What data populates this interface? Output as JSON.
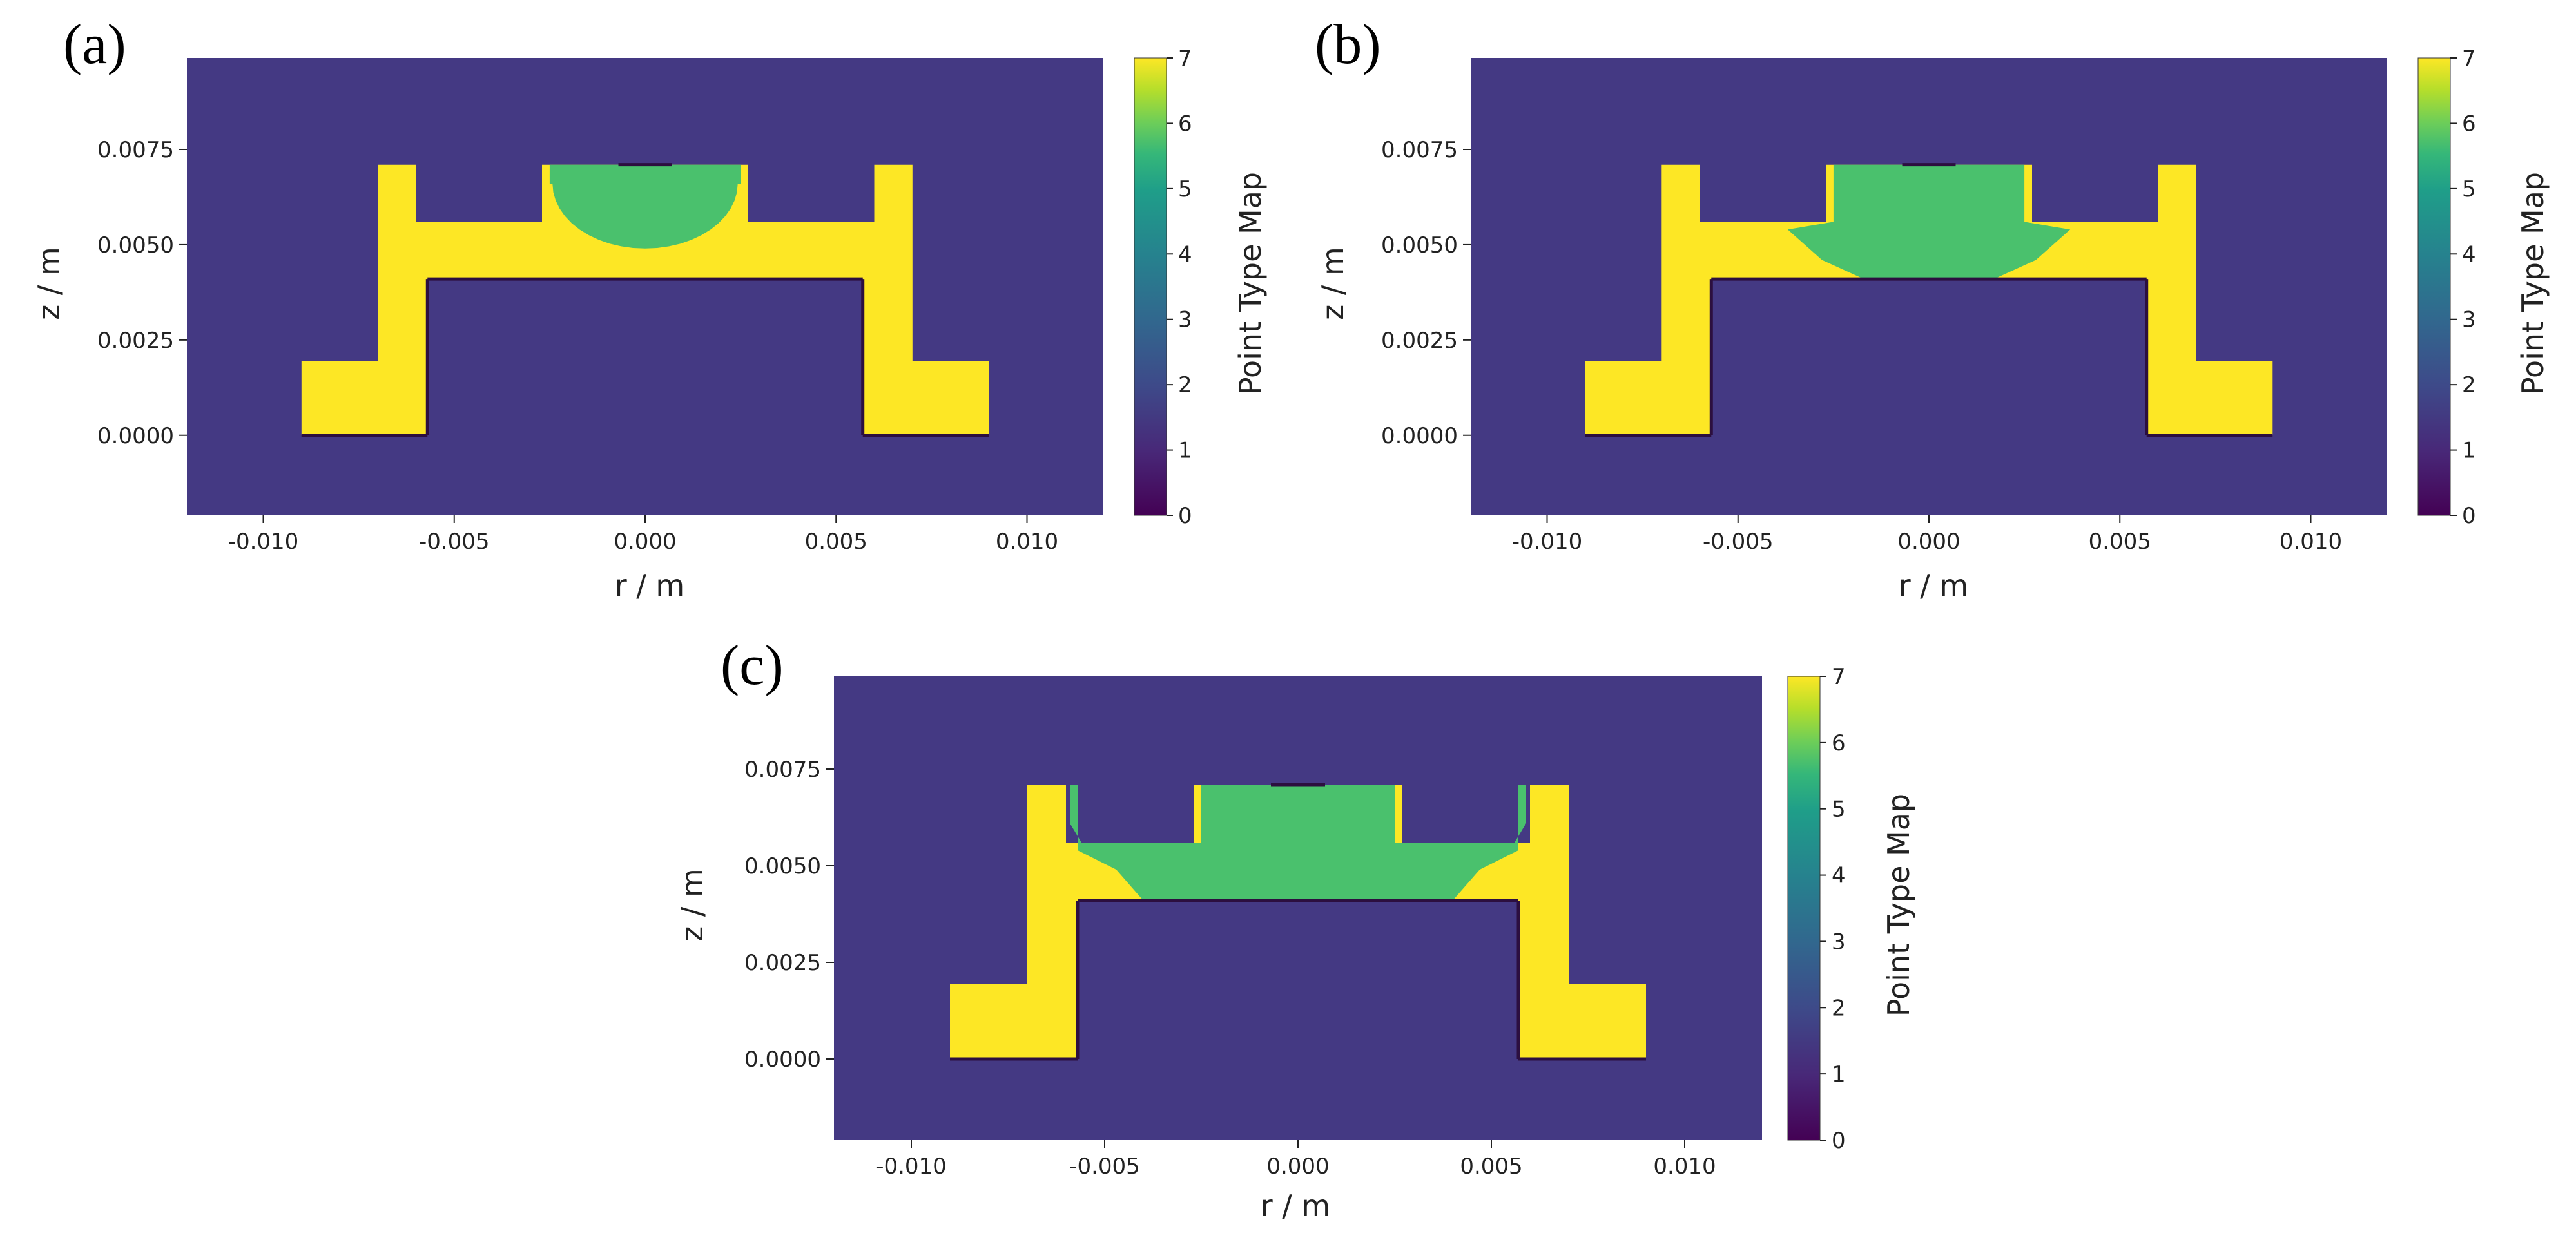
{
  "chart_data": [
    {
      "type": "heatmap",
      "panel_label": "(a)",
      "xlabel": "r / m",
      "ylabel": "z / m",
      "xlim": [
        -0.012,
        0.012
      ],
      "ylim": [
        -0.0021,
        0.0099
      ],
      "xticks": [
        "-0.010",
        "-0.005",
        "0.000",
        "0.005",
        "0.010"
      ],
      "xtick_values": [
        -0.01,
        -0.005,
        0.0,
        0.005,
        0.01
      ],
      "yticks": [
        "0.0000",
        "0.0025",
        "0.0050",
        "0.0075"
      ],
      "ytick_values": [
        0.0,
        0.0025,
        0.005,
        0.0075
      ],
      "colorbar": {
        "label": "Point Type Map",
        "range": [
          0,
          7
        ],
        "ticks": [
          "0",
          "1",
          "2",
          "3",
          "4",
          "5",
          "6",
          "7"
        ]
      },
      "regions": {
        "background_value": 1,
        "electrode_value": 7,
        "melt_value": 5,
        "boundary_value": 0
      },
      "melt_pool_shape": "bowl",
      "melt_half_width": 0.0025,
      "melt_depth_bottom": 0.0049
    },
    {
      "type": "heatmap",
      "panel_label": "(b)",
      "xlabel": "r / m",
      "ylabel": "z / m",
      "xlim": [
        -0.012,
        0.012
      ],
      "ylim": [
        -0.0021,
        0.0099
      ],
      "xticks": [
        "-0.010",
        "-0.005",
        "0.000",
        "0.005",
        "0.010"
      ],
      "xtick_values": [
        -0.01,
        -0.005,
        0.0,
        0.005,
        0.01
      ],
      "yticks": [
        "0.0000",
        "0.0025",
        "0.0050",
        "0.0075"
      ],
      "ytick_values": [
        0.0,
        0.0025,
        0.005,
        0.0075
      ],
      "colorbar": {
        "label": "Point Type Map",
        "range": [
          0,
          7
        ],
        "ticks": [
          "0",
          "1",
          "2",
          "3",
          "4",
          "5",
          "6",
          "7"
        ]
      },
      "regions": {
        "background_value": 1,
        "electrode_value": 7,
        "melt_value": 5,
        "boundary_value": 0
      },
      "melt_pool_shape": "trapezoid",
      "melt_half_width": 0.0025,
      "melt_depth_bottom": 0.0041
    },
    {
      "type": "heatmap",
      "panel_label": "(c)",
      "xlabel": "r / m",
      "ylabel": "z / m",
      "xlim": [
        -0.012,
        0.012
      ],
      "ylim": [
        -0.0021,
        0.0099
      ],
      "xticks": [
        "-0.010",
        "-0.005",
        "0.000",
        "0.005",
        "0.010"
      ],
      "xtick_values": [
        -0.01,
        -0.005,
        0.0,
        0.005,
        0.01
      ],
      "yticks": [
        "0.0000",
        "0.0025",
        "0.0050",
        "0.0075"
      ],
      "ytick_values": [
        0.0,
        0.0025,
        0.005,
        0.0075
      ],
      "colorbar": {
        "label": "Point Type Map",
        "range": [
          0,
          7
        ],
        "ticks": [
          "0",
          "1",
          "2",
          "3",
          "4",
          "5",
          "6",
          "7"
        ]
      },
      "regions": {
        "background_value": 1,
        "electrode_value": 7,
        "melt_value": 5,
        "boundary_value": 0
      },
      "melt_pool_shape": "wide",
      "melt_half_width": 0.0025,
      "melt_depth_bottom": 0.0041
    }
  ],
  "colors": {
    "background": "#443983",
    "electrode": "#fde725",
    "melt": "#4ac16d",
    "boundary": "#2c0f3f"
  }
}
